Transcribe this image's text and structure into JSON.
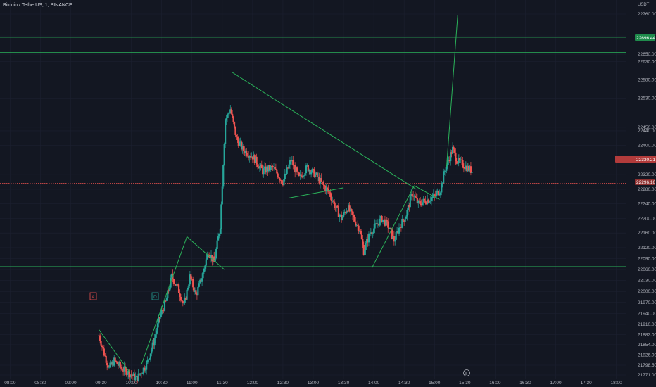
{
  "header": {
    "symbol_line": "Bitcoin / TetherUS, 1, BINANCE"
  },
  "axis": {
    "currency": "USDT"
  },
  "colors": {
    "background": "#131722",
    "up": "#26a69a",
    "down": "#ef5350",
    "drawing": "#2bb35a",
    "grid": "#1c2030",
    "text": "#b2b5be"
  },
  "price_labels": {
    "green_level": "22696.44",
    "current_badge": "22330.21",
    "red_level": "22296.16"
  },
  "markers": [
    {
      "name": "marker-a",
      "text": "A",
      "color": "#ef5350"
    },
    {
      "name": "marker-d",
      "text": "D",
      "color": "#26a69a"
    }
  ],
  "event_icon": "flag-icon",
  "chart_data": {
    "type": "candlestick",
    "title": "Bitcoin / TetherUS, 1, BINANCE",
    "y_unit": "USDT",
    "x_ticks": [
      "08:00",
      "08:30",
      "09:00",
      "09:30",
      "10:00",
      "10:30",
      "11:00",
      "11:30",
      "12:00",
      "12:30",
      "13:00",
      "13:30",
      "14:00",
      "14:30",
      "15:00",
      "15:30",
      "16:00",
      "16:30",
      "17:00",
      "17:30",
      "18:00"
    ],
    "y_ticks": [
      22760,
      22700,
      22650,
      22630,
      22580,
      22530,
      22450,
      22440,
      22400,
      22360,
      22320,
      22280,
      22240,
      22200,
      22160,
      22120,
      22090,
      22060,
      22030,
      22000,
      21970,
      21940,
      21910,
      21882,
      21854,
      21826,
      21798,
      21771
    ],
    "y_tick_labels": [
      "22760.00",
      "22700.00",
      "22650.00",
      "22630.00",
      "22580.00",
      "22530.00",
      "22450.00",
      "22440.00",
      "22400.00",
      "22360.00",
      "22320.00",
      "22280.00",
      "22240.00",
      "22200.00",
      "22160.00",
      "22120.00",
      "22090.00",
      "22060.00",
      "22030.00",
      "22000.00",
      "21970.00",
      "21940.00",
      "21910.00",
      "21882.00",
      "21854.00",
      "21826.00",
      "21798.50",
      "21771.00"
    ],
    "price_path": [
      [
        "09:28",
        21880
      ],
      [
        "09:33",
        21830
      ],
      [
        "09:38",
        21790
      ],
      [
        "09:43",
        21810
      ],
      [
        "09:50",
        21790
      ],
      [
        "09:56",
        21780
      ],
      [
        "10:05",
        21760
      ],
      [
        "10:15",
        21800
      ],
      [
        "10:22",
        21860
      ],
      [
        "10:28",
        21930
      ],
      [
        "10:34",
        21970
      ],
      [
        "10:40",
        22040
      ],
      [
        "10:46",
        22010
      ],
      [
        "10:52",
        21960
      ],
      [
        "10:58",
        22040
      ],
      [
        "11:04",
        21990
      ],
      [
        "11:10",
        22040
      ],
      [
        "11:16",
        22110
      ],
      [
        "11:22",
        22080
      ],
      [
        "11:28",
        22180
      ],
      [
        "11:33",
        22470
      ],
      [
        "11:38",
        22500
      ],
      [
        "11:44",
        22420
      ],
      [
        "11:50",
        22390
      ],
      [
        "12:00",
        22370
      ],
      [
        "12:10",
        22330
      ],
      [
        "12:20",
        22340
      ],
      [
        "12:30",
        22300
      ],
      [
        "12:38",
        22360
      ],
      [
        "12:46",
        22310
      ],
      [
        "12:54",
        22340
      ],
      [
        "13:02",
        22320
      ],
      [
        "13:10",
        22290
      ],
      [
        "13:16",
        22270
      ],
      [
        "13:22",
        22230
      ],
      [
        "13:28",
        22200
      ],
      [
        "13:34",
        22230
      ],
      [
        "13:40",
        22200
      ],
      [
        "13:46",
        22170
      ],
      [
        "13:50",
        22110
      ],
      [
        "13:56",
        22160
      ],
      [
        "14:02",
        22180
      ],
      [
        "14:08",
        22200
      ],
      [
        "14:14",
        22180
      ],
      [
        "14:20",
        22140
      ],
      [
        "14:26",
        22180
      ],
      [
        "14:32",
        22210
      ],
      [
        "14:38",
        22270
      ],
      [
        "14:44",
        22240
      ],
      [
        "14:52",
        22250
      ],
      [
        "15:00",
        22260
      ],
      [
        "15:06",
        22280
      ],
      [
        "15:10",
        22330
      ],
      [
        "15:14",
        22360
      ],
      [
        "15:18",
        22390
      ],
      [
        "15:22",
        22360
      ],
      [
        "15:27",
        22350
      ],
      [
        "15:32",
        22340
      ],
      [
        "15:37",
        22330
      ]
    ],
    "y_range": [
      21771,
      22760
    ],
    "trendlines": [
      {
        "from": [
          "09:28",
          21895
        ],
        "to": [
          "09:58",
          21780
        ]
      },
      {
        "from": [
          "10:10",
          21800
        ],
        "to": [
          "10:55",
          22150
        ]
      },
      {
        "from": [
          "10:55",
          22150
        ],
        "to": [
          "11:32",
          22060
        ]
      },
      {
        "from": [
          "11:40",
          22600
        ],
        "to": [
          "14:42",
          22280
        ]
      },
      {
        "from": [
          "12:36",
          22256
        ],
        "to": [
          "13:30",
          22284
        ]
      },
      {
        "from": [
          "13:58",
          22064
        ],
        "to": [
          "14:40",
          22290
        ]
      },
      {
        "from": [
          "14:40",
          22290
        ],
        "to": [
          "15:05",
          22252
        ]
      },
      {
        "from": [
          "15:12",
          22342
        ],
        "to": [
          "15:23",
          22758
        ]
      }
    ],
    "horizontal_levels": [
      {
        "price": 22696.44,
        "color": "#2bb35a"
      },
      {
        "price": 22655,
        "color": "#2bb35a"
      },
      {
        "price": 22068,
        "color": "#2bb35a"
      },
      {
        "price": 22296.16,
        "color": "#ef5350",
        "style": "dotted"
      }
    ],
    "grid": true,
    "legend": "none"
  }
}
